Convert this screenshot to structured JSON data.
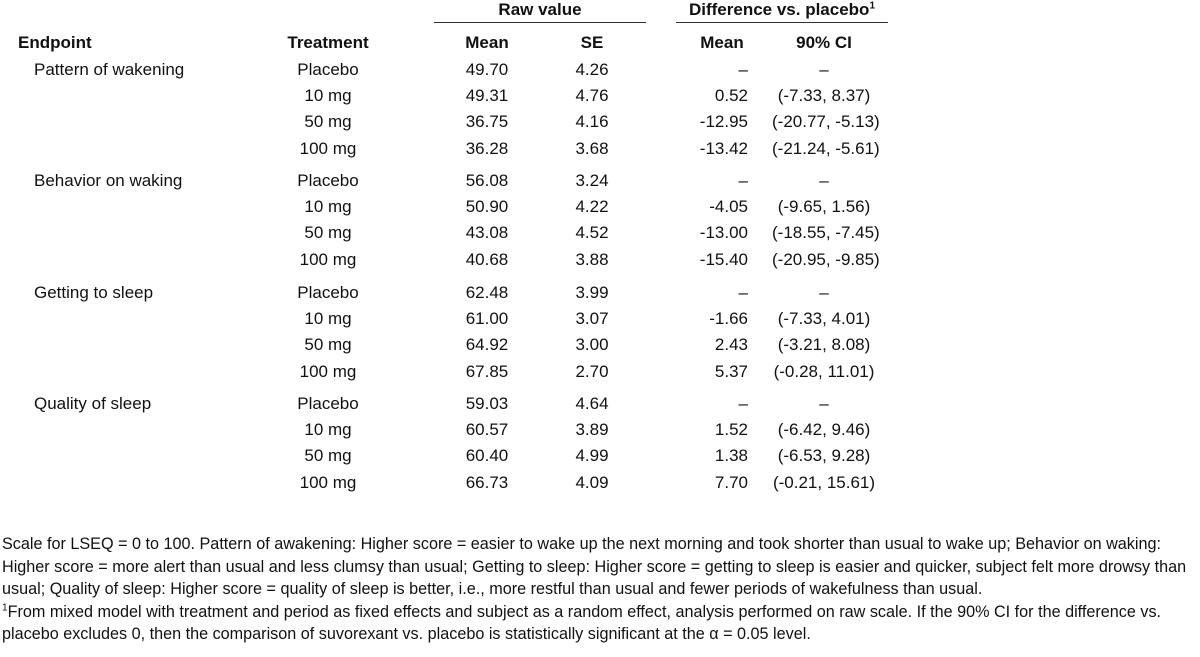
{
  "header": {
    "group_raw": "Raw value",
    "group_diff": "Difference vs. placebo",
    "group_diff_sup": "1",
    "col_endpoint": "Endpoint",
    "col_treatment": "Treatment",
    "col_raw_mean": "Mean",
    "col_raw_se": "SE",
    "col_diff_mean": "Mean",
    "col_diff_ci": "90% CI"
  },
  "groups": [
    {
      "endpoint": "Pattern of wakening",
      "rows": [
        {
          "treatment": "Placebo",
          "mean": "49.70",
          "se": "4.26",
          "diff": "–",
          "ci": "–"
        },
        {
          "treatment": "10 mg",
          "mean": "49.31",
          "se": "4.76",
          "diff": "0.52",
          "ci": "(-7.33, 8.37)"
        },
        {
          "treatment": "50 mg",
          "mean": "36.75",
          "se": "4.16",
          "diff": "-12.95",
          "ci": "(-20.77, -5.13)"
        },
        {
          "treatment": "100 mg",
          "mean": "36.28",
          "se": "3.68",
          "diff": "-13.42",
          "ci": "(-21.24, -5.61)"
        }
      ]
    },
    {
      "endpoint": "Behavior on waking",
      "rows": [
        {
          "treatment": "Placebo",
          "mean": "56.08",
          "se": "3.24",
          "diff": "–",
          "ci": "–"
        },
        {
          "treatment": "10 mg",
          "mean": "50.90",
          "se": "4.22",
          "diff": "-4.05",
          "ci": "(-9.65, 1.56)"
        },
        {
          "treatment": "50 mg",
          "mean": "43.08",
          "se": "4.52",
          "diff": "-13.00",
          "ci": "(-18.55, -7.45)"
        },
        {
          "treatment": "100 mg",
          "mean": "40.68",
          "se": "3.88",
          "diff": "-15.40",
          "ci": "(-20.95, -9.85)"
        }
      ]
    },
    {
      "endpoint": "Getting to sleep",
      "rows": [
        {
          "treatment": "Placebo",
          "mean": "62.48",
          "se": "3.99",
          "diff": "–",
          "ci": "–"
        },
        {
          "treatment": "10 mg",
          "mean": "61.00",
          "se": "3.07",
          "diff": "-1.66",
          "ci": "(-7.33, 4.01)"
        },
        {
          "treatment": "50 mg",
          "mean": "64.92",
          "se": "3.00",
          "diff": "2.43",
          "ci": "(-3.21, 8.08)"
        },
        {
          "treatment": "100 mg",
          "mean": "67.85",
          "se": "2.70",
          "diff": "5.37",
          "ci": "(-0.28, 11.01)"
        }
      ]
    },
    {
      "endpoint": "Quality of sleep",
      "rows": [
        {
          "treatment": "Placebo",
          "mean": "59.03",
          "se": "4.64",
          "diff": "–",
          "ci": "–"
        },
        {
          "treatment": "10 mg",
          "mean": "60.57",
          "se": "3.89",
          "diff": "1.52",
          "ci": "(-6.42, 9.46)"
        },
        {
          "treatment": "50 mg",
          "mean": "60.40",
          "se": "4.99",
          "diff": "1.38",
          "ci": "(-6.53, 9.28)"
        },
        {
          "treatment": "100 mg",
          "mean": "66.73",
          "se": "4.09",
          "diff": "7.70",
          "ci": "(-0.21, 15.61)"
        }
      ]
    }
  ],
  "footnotes": {
    "scale_note": "Scale for LSEQ = 0 to 100. Pattern of awakening: Higher score = easier to wake up the next morning and took shorter than usual to wake up; Behavior on waking: Higher score = more alert than usual and less clumsy than usual; Getting to sleep: Higher score = getting to sleep is easier and quicker, subject felt more drowsy than usual; Quality of sleep: Higher score = quality of sleep is better, i.e., more restful than usual and fewer periods of wakefulness than usual.",
    "model_note_sup": "1",
    "model_note": "From mixed model with treatment and period as fixed effects and subject as a random effect, analysis performed on raw scale. If the 90% CI for the difference vs. placebo excludes 0, then the comparison of suvorexant vs. placebo is statistically significant at the α = 0.05 level."
  }
}
